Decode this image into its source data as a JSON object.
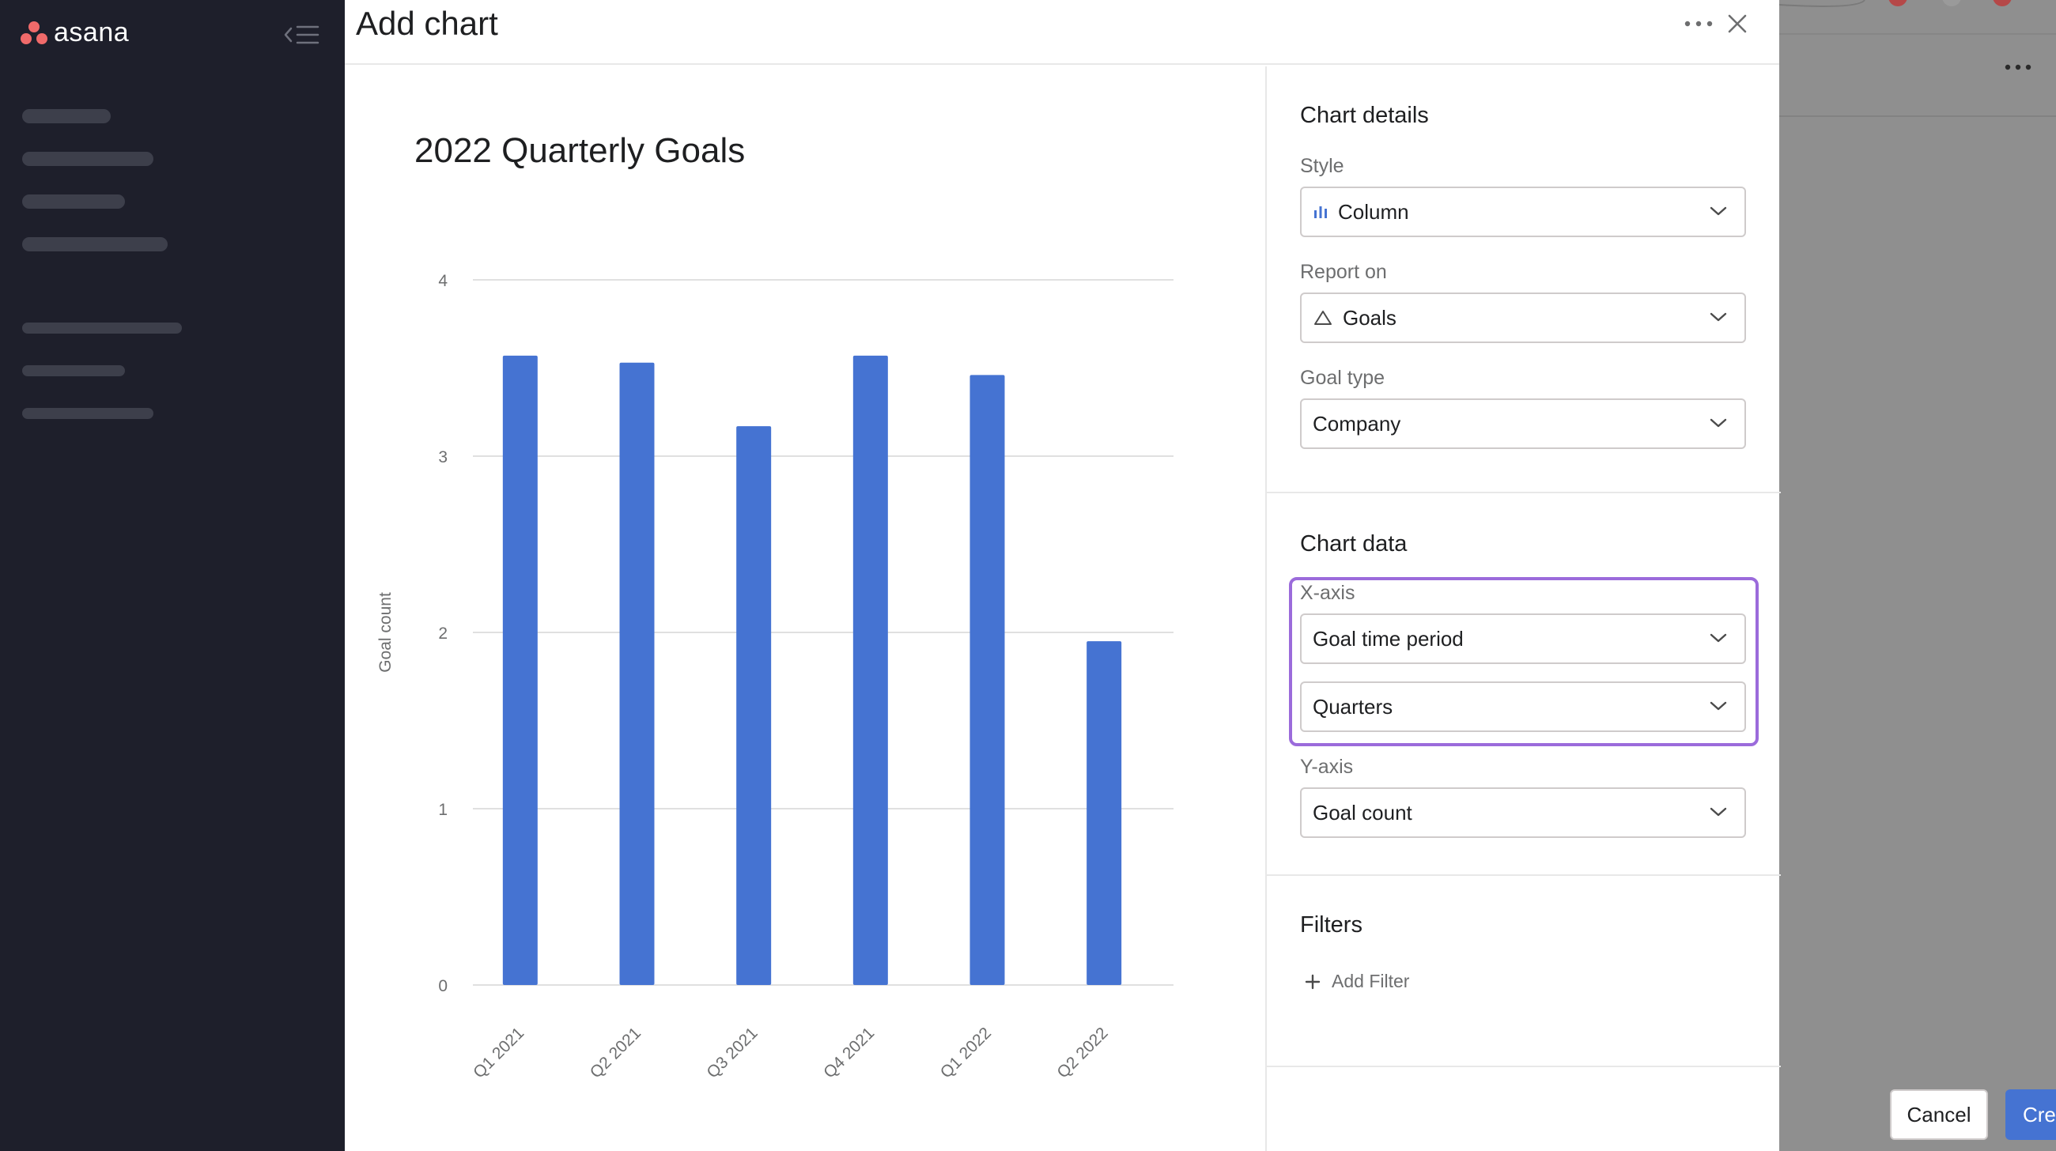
{
  "app": {
    "logo_text": "asana",
    "accent_color": "#f06a6a"
  },
  "modal": {
    "title": "Add chart",
    "more_icon": "more-horizontal-icon",
    "close_icon": "close-icon"
  },
  "panel": {
    "chart_details": {
      "title": "Chart details",
      "style_label": "Style",
      "style_value": "Column",
      "style_icon": "bar-chart-icon",
      "report_on_label": "Report on",
      "report_on_value": "Goals",
      "report_on_icon": "triangle-goal-icon",
      "goal_type_label": "Goal type",
      "goal_type_value": "Company"
    },
    "chart_data": {
      "title": "Chart data",
      "x_axis_label": "X-axis",
      "x_axis_value": "Goal time period",
      "x_axis_grouping": "Quarters",
      "y_axis_label": "Y-axis",
      "y_axis_value": "Goal count",
      "highlight_color": "#9b6bdb"
    },
    "filters": {
      "title": "Filters",
      "add_filter_label": "Add Filter"
    },
    "footer": {
      "cancel_label": "Cancel",
      "create_label": "Create",
      "create_color": "#4573d2"
    }
  },
  "chart_data": {
    "type": "bar",
    "title": "2022 Quarterly Goals",
    "xlabel": "",
    "ylabel": "Goal count",
    "categories": [
      "Q1 2021",
      "Q2 2021",
      "Q3 2021",
      "Q4 2021",
      "Q1 2022",
      "Q2 2022"
    ],
    "values": [
      3.57,
      3.53,
      3.17,
      3.57,
      3.46,
      1.95
    ],
    "ylim": [
      0,
      4
    ],
    "yticks": [
      0,
      1,
      2,
      3,
      4
    ],
    "bar_color": "#4573d2",
    "grid": true,
    "legend": "none"
  }
}
